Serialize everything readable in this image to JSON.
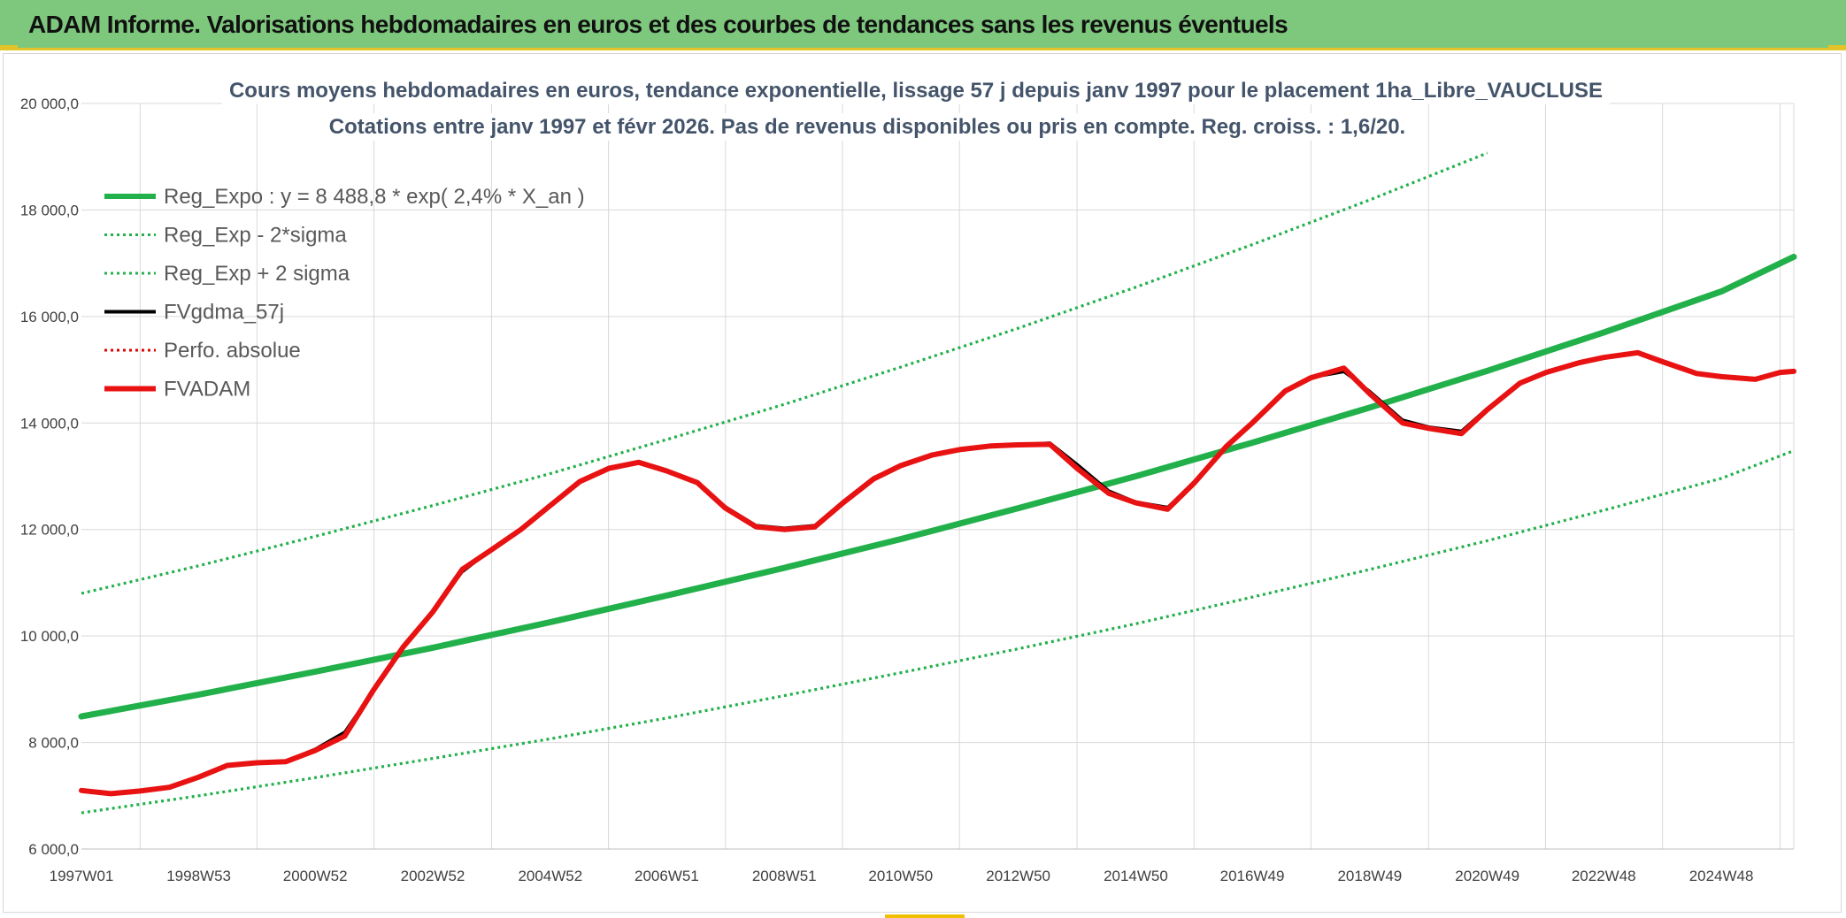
{
  "header": {
    "title": "ADAM Informe. Valorisations hebdomadaires en euros et des courbes de tendances sans les revenus éventuels",
    "background": "#7ec87e",
    "accent": "#e2c42a"
  },
  "chart_data": {
    "type": "line",
    "title": "Cours moyens hebdomadaires en euros, tendance exponentielle, lissage 57 j depuis janv 1997 pour le placement 1ha_Libre_VAUCLUSE",
    "subtitle": "Cotations entre janv 1997 et févr 2026. Pas de revenus disponibles ou pris en compte. Reg. croiss. : 1,6/20.",
    "xlabel": "",
    "ylabel": "",
    "ylim": [
      6000,
      20000
    ],
    "y_ticks": [
      "6 000,0",
      "8 000,0",
      "10 000,0",
      "12 000,0",
      "14 000,0",
      "16 000,0",
      "18 000,0",
      "20 000,0"
    ],
    "x_ticks": [
      "1997W01",
      "1998W53",
      "2000W52",
      "2002W52",
      "2004W52",
      "2006W51",
      "2008W51",
      "2010W50",
      "2012W50",
      "2014W50",
      "2016W49",
      "2018W49",
      "2020W49",
      "2022W48",
      "2024W48"
    ],
    "x_range": [
      "1997W01",
      "2026W08"
    ],
    "legend_position": "top-left",
    "grid": true,
    "series": [
      {
        "name": "Reg_Expo : y = 8 488,8 * exp( 2,4% *  X_an )",
        "style": "solid-thick",
        "color": "#22b04b",
        "x": [
          "1997W01",
          "1998W53",
          "2000W52",
          "2002W52",
          "2004W52",
          "2006W51",
          "2008W51",
          "2010W50",
          "2012W50",
          "2014W50",
          "2016W49",
          "2018W49",
          "2020W49",
          "2022W48",
          "2024W48",
          "2026W08"
        ],
        "values": [
          8489,
          8900,
          9330,
          9780,
          10260,
          10760,
          11280,
          11820,
          12400,
          13000,
          13630,
          14290,
          14980,
          15700,
          16470,
          17120
        ]
      },
      {
        "name": "Reg_Exp - 2*sigma",
        "style": "dotted",
        "color": "#22b04b",
        "x": [
          "1997W01",
          "1998W53",
          "2000W52",
          "2002W52",
          "2004W52",
          "2006W51",
          "2008W51",
          "2010W50",
          "2012W50",
          "2014W50",
          "2016W49",
          "2018W49",
          "2020W49",
          "2022W48",
          "2024W48",
          "2026W08"
        ],
        "values": [
          6680,
          7000,
          7340,
          7700,
          8070,
          8460,
          8880,
          9310,
          9760,
          10230,
          10730,
          11250,
          11790,
          12360,
          12960,
          13480
        ]
      },
      {
        "name": "Reg_Exp + 2 sigma",
        "style": "dotted",
        "color": "#22b04b",
        "x": [
          "1997W01",
          "1998W53",
          "2000W52",
          "2002W52",
          "2004W52",
          "2006W51",
          "2008W51",
          "2010W50",
          "2012W50",
          "2014W50",
          "2016W49",
          "2018W49",
          "2020W49"
        ],
        "values": [
          10800,
          11320,
          11870,
          12450,
          13050,
          13690,
          14350,
          15050,
          15780,
          16550,
          17350,
          18190,
          19070
        ]
      },
      {
        "name": "FVgdma_57j",
        "style": "solid",
        "color": "#000000",
        "x": [
          "1997W01",
          "1997W27",
          "1998W01",
          "1998W27",
          "1998W53",
          "1999W26",
          "1999W52",
          "2000W26",
          "2000W52",
          "2001W26",
          "2001W52",
          "2002W26",
          "2002W52",
          "2003W26",
          "2003W52",
          "2004W26",
          "2004W52",
          "2005W26",
          "2005W52",
          "2006W26",
          "2006W51",
          "2007W26",
          "2007W51",
          "2008W26",
          "2008W51",
          "2009W26",
          "2009W51",
          "2010W26",
          "2010W50",
          "2011W26",
          "2011W50",
          "2012W26",
          "2012W50",
          "2013W26",
          "2013W50",
          "2014W26",
          "2014W50",
          "2015W26",
          "2015W50",
          "2016W26",
          "2016W49",
          "2017W26",
          "2017W49",
          "2018W26",
          "2018W49",
          "2019W26",
          "2019W49",
          "2020W26",
          "2020W49",
          "2021W26",
          "2021W49",
          "2022W26",
          "2022W48",
          "2023W26",
          "2023W48",
          "2024W26",
          "2024W48",
          "2025W26",
          "2025W48",
          "2026W08"
        ],
        "values": [
          7110,
          7050,
          7100,
          7170,
          7360,
          7580,
          7630,
          7650,
          7880,
          8200,
          9000,
          9800,
          10450,
          11200,
          11620,
          12000,
          12450,
          12900,
          13150,
          13280,
          13120,
          12880,
          12430,
          12080,
          12030,
          12080,
          12530,
          12980,
          13200,
          13400,
          13500,
          13580,
          13600,
          13630,
          13230,
          12730,
          12520,
          12420,
          12880,
          13570,
          14000,
          14600,
          14850,
          14960,
          14600,
          14060,
          13930,
          13850,
          14280,
          14750,
          14950,
          15130,
          15230,
          15330,
          15150,
          14930,
          14870,
          14830,
          14950,
          14980
        ]
      },
      {
        "name": "Perfo. absolue",
        "style": "dotted",
        "color": "#e00000",
        "x": [],
        "values": []
      },
      {
        "name": "FVADAM",
        "style": "solid-thick",
        "color": "#e81212",
        "x": [
          "1997W01",
          "1997W27",
          "1998W01",
          "1998W27",
          "1998W53",
          "1999W26",
          "1999W52",
          "2000W26",
          "2000W52",
          "2001W26",
          "2001W52",
          "2002W26",
          "2002W52",
          "2003W26",
          "2003W52",
          "2004W26",
          "2004W52",
          "2005W26",
          "2005W52",
          "2006W26",
          "2006W51",
          "2007W26",
          "2007W51",
          "2008W26",
          "2008W51",
          "2009W26",
          "2009W51",
          "2010W26",
          "2010W50",
          "2011W26",
          "2011W50",
          "2012W26",
          "2012W50",
          "2013W26",
          "2013W50",
          "2014W26",
          "2014W50",
          "2015W26",
          "2015W50",
          "2016W26",
          "2016W49",
          "2017W26",
          "2017W49",
          "2018W26",
          "2018W49",
          "2019W26",
          "2019W49",
          "2020W26",
          "2020W49",
          "2021W26",
          "2021W49",
          "2022W26",
          "2022W48",
          "2023W26",
          "2023W48",
          "2024W26",
          "2024W48",
          "2025W26",
          "2025W48",
          "2026W08"
        ],
        "values": [
          7100,
          7040,
          7090,
          7160,
          7350,
          7570,
          7620,
          7640,
          7850,
          8120,
          9000,
          9800,
          10450,
          11250,
          11620,
          12000,
          12450,
          12900,
          13150,
          13260,
          13100,
          12880,
          12400,
          12050,
          12000,
          12050,
          12500,
          12950,
          13200,
          13400,
          13500,
          13570,
          13590,
          13600,
          13150,
          12680,
          12500,
          12380,
          12880,
          13560,
          14000,
          14600,
          14850,
          15030,
          14550,
          14000,
          13900,
          13800,
          14250,
          14750,
          14950,
          15130,
          15230,
          15320,
          15150,
          14930,
          14870,
          14820,
          14950,
          14970
        ]
      }
    ]
  }
}
